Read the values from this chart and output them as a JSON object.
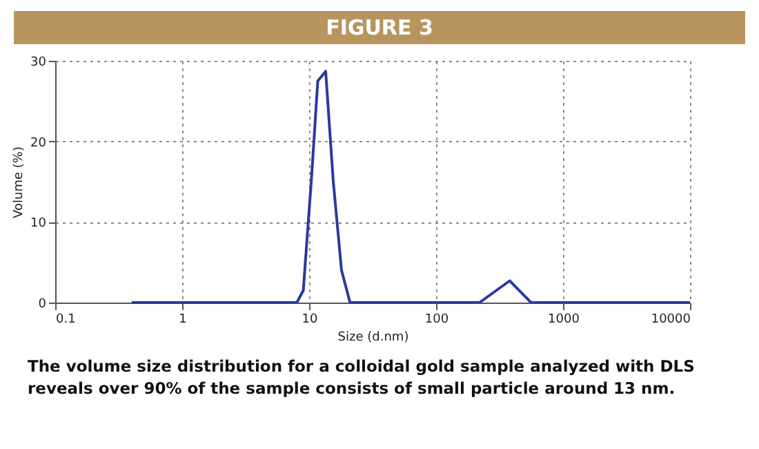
{
  "chart_data": {
    "type": "line",
    "title": "FIGURE 3",
    "xlabel": "Size (d.nm)",
    "ylabel": "Volume (%)",
    "x": [
      0.4,
      8,
      9,
      10.5,
      11.7,
      13.5,
      15.5,
      18,
      21,
      220,
      380,
      560,
      10000
    ],
    "series": [
      {
        "color": "#2b3a9e",
        "values": [
          0,
          0,
          1.5,
          16,
          27.5,
          28.7,
          15,
          4,
          0,
          0,
          2.7,
          0,
          0
        ]
      }
    ],
    "log": "x",
    "xlim": [
      0.1,
      10000
    ],
    "xticks": [
      0.1,
      1,
      10,
      100,
      1000,
      10000
    ],
    "ylim": [
      0,
      30
    ],
    "yticks": [
      0,
      10,
      20,
      30
    ],
    "grid": true,
    "marker": "none",
    "line_style": "solid",
    "annotations": [
      "The volume size distribution for a colloidal gold sample analyzed with DLS reveals over 90% of the sample consists of small particle around 13 nm."
    ]
  }
}
